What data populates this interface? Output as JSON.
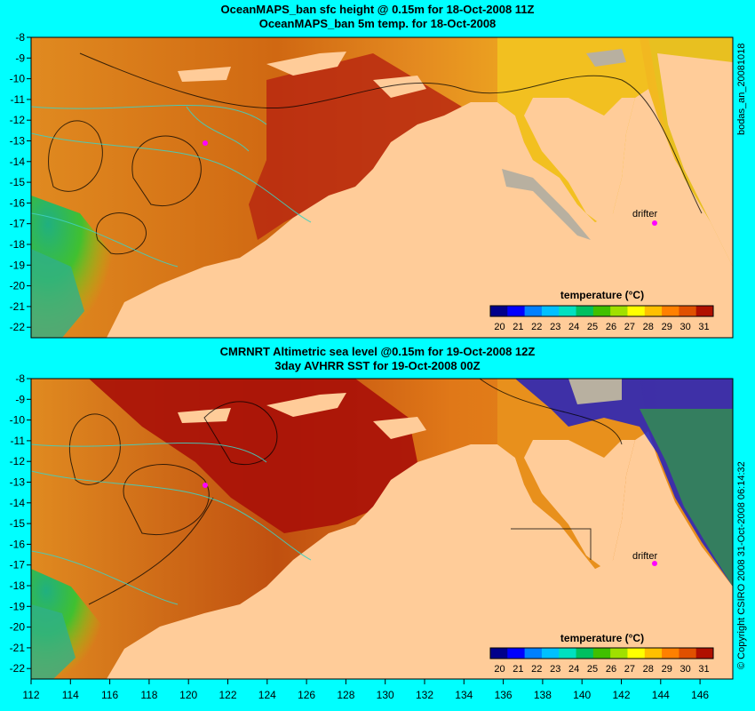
{
  "panels": [
    {
      "title_line1": "OceanMAPS_ban sfc height @ 0.15m for 18-Oct-2008 11Z",
      "title_line2": "OceanMAPS_ban 5m temp. for 18-Oct-2008",
      "side_label": "bodas_an_20081018",
      "drifter_label": "drifter",
      "colorbar_title": "temperature (°C)"
    },
    {
      "title_line1": "CMRNRT Altimetric sea level  @0.15m  for 19-Oct-2008 12Z",
      "title_line2": "3day AVHRR SST for 19-Oct-2008 00Z",
      "side_label": "© Copyright CSIRO 2008   31-Oct-2008 06:14:32",
      "drifter_label": "drifter",
      "colorbar_title": "temperature (°C)"
    }
  ],
  "y_ticks": [
    "-8",
    "-9",
    "-10",
    "-11",
    "-12",
    "-13",
    "-14",
    "-15",
    "-16",
    "-17",
    "-18",
    "-19",
    "-20",
    "-21",
    "-22"
  ],
  "x_ticks": [
    "112",
    "114",
    "116",
    "118",
    "120",
    "122",
    "124",
    "126",
    "128",
    "130",
    "132",
    "134",
    "136",
    "138",
    "140",
    "142",
    "144",
    "146"
  ],
  "colorbar_ticks": [
    "20",
    "21",
    "22",
    "23",
    "24",
    "25",
    "26",
    "27",
    "28",
    "29",
    "30",
    "31"
  ],
  "colorbar_colors": [
    "#00008b",
    "#0000ff",
    "#0080ff",
    "#00c0ff",
    "#00e0c0",
    "#00c060",
    "#40c000",
    "#a0e000",
    "#ffff00",
    "#ffc000",
    "#ff8000",
    "#e05000",
    "#b01000"
  ],
  "colors": {
    "background": "#00ffff",
    "land": "#ffcc99",
    "shelf": "#b8b0a0",
    "sea_warm": "#d06010",
    "sea_hot": "#a01008",
    "drifter": "#ff00ff"
  }
}
